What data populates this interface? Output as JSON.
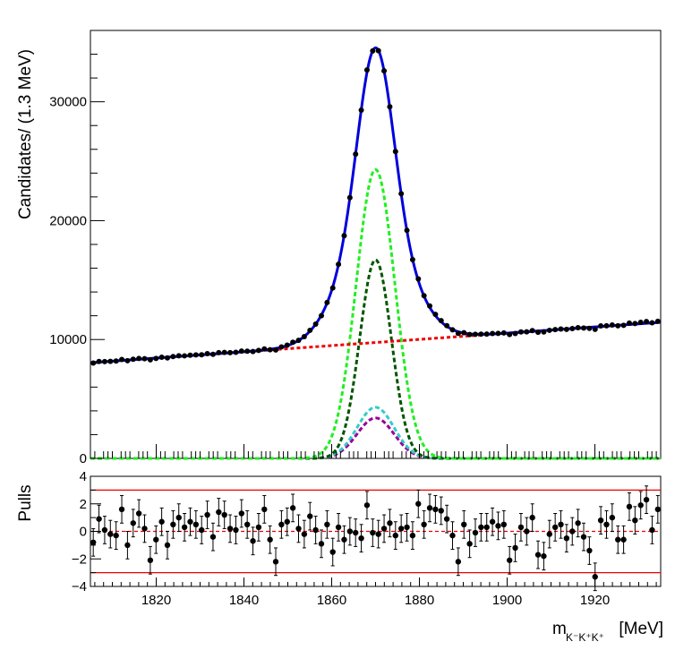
{
  "chart_data": [
    {
      "type": "scatter",
      "title": "",
      "ylabel": "Candidates/ (1.3 MeV)",
      "xlabel": "",
      "xlim": [
        1805,
        1935
      ],
      "ylim": [
        0,
        36000
      ],
      "yticks": [
        0,
        10000,
        20000,
        30000
      ],
      "ytick_labels": [
        "0",
        "10000",
        "20000",
        "30000"
      ],
      "grid": false,
      "data_points": {
        "name": "",
        "color": "#000000",
        "note_values": "binned data, estimated from figure",
        "x": [],
        "y": []
      },
      "curves": [
        {
          "name": "",
          "color": "#0000dd",
          "style": "solid",
          "role": "total"
        },
        {
          "name": "",
          "color": "#ee0000",
          "style": "dashed",
          "role": "background"
        },
        {
          "name": "",
          "color": "#22ee22",
          "style": "dashed",
          "role": "component",
          "peak": 24300,
          "mean": 1870.0,
          "sigma": 4.4
        },
        {
          "name": "",
          "color": "#005500",
          "style": "dashed",
          "role": "component",
          "peak": 16700,
          "mean": 1870.0,
          "sigma": 3.6
        },
        {
          "name": "",
          "color": "#33cccc",
          "style": "dashed",
          "role": "component",
          "peak": 4300,
          "mean": 1870.0,
          "sigma": 4.2
        },
        {
          "name": "",
          "color": "#990099",
          "style": "dashed",
          "role": "component",
          "peak": 3400,
          "mean": 1870.0,
          "sigma": 4.2
        }
      ],
      "background_line": {
        "y_at_1805": 8050,
        "y_at_1935": 11450
      }
    },
    {
      "type": "scatter",
      "title": "",
      "ylabel": "Pulls",
      "xlabel": "m_{K⁻K⁺K⁺} [MeV]",
      "xlabel_main": "m",
      "xlabel_sub": "K⁻K⁺K⁺",
      "xlabel_unit": "[MeV]",
      "xlim": [
        1805,
        1935
      ],
      "ylim": [
        -4,
        4
      ],
      "xticks": [
        1820,
        1840,
        1860,
        1880,
        1900,
        1920
      ],
      "xtick_labels": [
        "1820",
        "1840",
        "1860",
        "1880",
        "1900",
        "1920"
      ],
      "yticks": [
        -4,
        -2,
        0,
        2,
        4
      ],
      "ytick_labels": [
        "−4",
        "−2",
        "0",
        "2",
        "4"
      ],
      "reference_lines": [
        {
          "y": 3,
          "color": "#ee0000",
          "style": "solid"
        },
        {
          "y": -3,
          "color": "#ee0000",
          "style": "solid"
        },
        {
          "y": 0,
          "color": "#ee0000",
          "style": "dashed"
        }
      ],
      "x": [
        1805.65,
        1806.95,
        1808.25,
        1809.55,
        1810.85,
        1812.15,
        1813.45,
        1814.75,
        1816.05,
        1817.35,
        1818.65,
        1819.95,
        1821.25,
        1822.55,
        1823.85,
        1825.15,
        1826.45,
        1827.75,
        1829.05,
        1830.35,
        1831.65,
        1832.95,
        1834.25,
        1835.55,
        1836.85,
        1838.15,
        1839.45,
        1840.75,
        1842.05,
        1843.35,
        1844.65,
        1845.95,
        1847.25,
        1848.55,
        1849.85,
        1851.15,
        1852.45,
        1853.75,
        1855.05,
        1856.35,
        1857.65,
        1858.95,
        1860.25,
        1861.55,
        1862.85,
        1864.15,
        1865.45,
        1866.75,
        1868.05,
        1869.35,
        1870.65,
        1871.95,
        1873.25,
        1874.55,
        1875.85,
        1877.15,
        1878.45,
        1879.75,
        1881.05,
        1882.35,
        1883.65,
        1884.95,
        1886.25,
        1887.55,
        1888.85,
        1890.15,
        1891.45,
        1892.75,
        1894.05,
        1895.35,
        1896.65,
        1897.95,
        1899.25,
        1900.55,
        1901.85,
        1903.15,
        1904.45,
        1905.75,
        1907.05,
        1908.35,
        1909.65,
        1910.95,
        1912.25,
        1913.55,
        1914.85,
        1916.15,
        1917.45,
        1918.75,
        1920.05,
        1921.35,
        1922.65,
        1923.95,
        1925.25,
        1926.55,
        1927.85,
        1929.15,
        1930.45,
        1931.75,
        1933.05,
        1934.35
      ],
      "values": [
        -0.8,
        0.9,
        0.1,
        -0.2,
        -0.3,
        1.6,
        -1.0,
        0.6,
        1.3,
        0.2,
        -2.1,
        -0.6,
        0.7,
        -1.0,
        0.5,
        1.0,
        0.3,
        0.7,
        0.5,
        0.1,
        1.2,
        -0.4,
        1.4,
        1.2,
        0.2,
        0.1,
        1.3,
        0.5,
        -0.7,
        0.3,
        1.6,
        -0.6,
        -2.2,
        0.5,
        0.7,
        1.7,
        0.2,
        -0.2,
        1.1,
        0.1,
        -0.9,
        0.5,
        -1.5,
        0.3,
        -0.6,
        0.0,
        -0.1,
        -0.5,
        1.9,
        -0.1,
        -0.2,
        0.2,
        0.6,
        -0.3,
        0.2,
        0.3,
        -0.3,
        2.0,
        0.5,
        1.7,
        1.6,
        1.5,
        0.9,
        -0.3,
        -2.2,
        0.5,
        -0.9,
        -0.1,
        0.3,
        0.3,
        0.7,
        0.4,
        0.5,
        -2.1,
        -1.2,
        0.3,
        0.0,
        1.0,
        -1.7,
        -1.8,
        -0.2,
        0.3,
        0.5,
        -0.5,
        0.0,
        0.6,
        -0.4,
        -1.4,
        -3.3,
        0.8,
        0.5,
        1.0,
        -0.6,
        -0.6,
        1.8,
        0.8,
        1.9,
        2.3,
        0.1,
        1.6
      ],
      "error": 1.0
    }
  ]
}
